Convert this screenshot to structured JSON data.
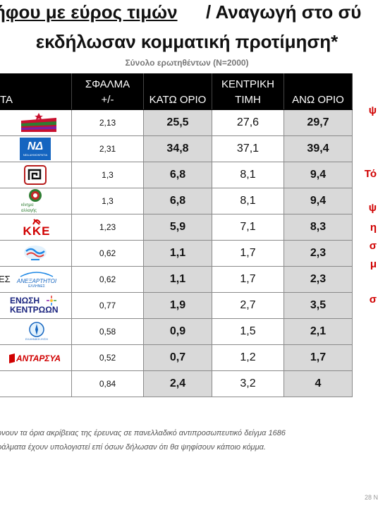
{
  "title": {
    "part1": "ήφου με εύρος τιμών",
    "part2": "/ Αναγωγή στο σύ",
    "line2": "εκδήλωσαν κομματική προτίμηση*"
  },
  "subtitle": "Σύνολο ερωτηθέντων (Ν=2000)",
  "table": {
    "headers": {
      "col0": "ΤΑ",
      "col1_line1": "ΣΦΑΛΜΑ",
      "col1_line2": "+/-",
      "col2": "ΚΑΤΩ ΟΡΙΟ",
      "col3_line1": "ΚΕΝΤΡΙΚΗ",
      "col3_line2": "ΤΙΜΗ",
      "col4": "ΑΝΩ ΟΡΙΟ"
    },
    "rows": [
      {
        "logo": "syriza-logo",
        "error": "2,13",
        "low": "25,5",
        "central": "27,6",
        "high": "29,7"
      },
      {
        "logo": "nd-logo",
        "logo_text": "ΝΔ",
        "logo_sub": "ΝΕΑ ΔΗΜΟΚΡΑΤΙΑ",
        "error": "2,31",
        "low": "34,8",
        "central": "37,1",
        "high": "39,4"
      },
      {
        "logo": "xa-logo",
        "error": "1,3",
        "low": "6,8",
        "central": "8,1",
        "high": "9,4"
      },
      {
        "logo": "kinal-logo",
        "logo_text": "κίνημα αλλαγής",
        "error": "1,3",
        "low": "6,8",
        "central": "8,1",
        "high": "9,4"
      },
      {
        "logo": "kke-logo",
        "logo_text": "ΚΚΕ",
        "error": "1,23",
        "low": "5,9",
        "central": "7,1",
        "high": "8,3"
      },
      {
        "logo": "potami-logo",
        "error": "0,62",
        "low": "1,1",
        "central": "1,7",
        "high": "2,3"
      },
      {
        "logo": "anel-logo",
        "tag": "ΕΣ",
        "logo_text": "ΑΝΕΞΑΡΤΗΤΟΙ",
        "logo_sub": "ΕΛΛΗΝΕΣ",
        "error": "0,62",
        "low": "1,1",
        "central": "1,7",
        "high": "2,3"
      },
      {
        "logo": "ek-logo",
        "logo_text": "ΕΝΩΣΗ",
        "logo_sub": "ΚΕΝΤΡΩΩΝ",
        "error": "0,77",
        "low": "1,9",
        "central": "2,7",
        "high": "3,5"
      },
      {
        "logo": "ea-logo",
        "logo_text": "ΕΛΛΗΝΙΚΗ ΛΥΣΗ",
        "error": "0,58",
        "low": "0,9",
        "central": "1,5",
        "high": "2,1"
      },
      {
        "logo": "antarsya-logo",
        "logo_text": "ΑΝΤΑΡΣΥΑ",
        "error": "0,52",
        "low": "0,7",
        "central": "1,2",
        "high": "1,7"
      },
      {
        "logo": "",
        "error": "0,84",
        "low": "2,4",
        "central": "3,2",
        "high": "4"
      }
    ]
  },
  "notes": {
    "line1": "ονουν τα όρια ακρίβειας της έρευνας σε πανελλαδικό αντιπροσωπευτικό δείγμα 1686",
    "line2": "ράλματα έχουν υπολογιστεί επί όσων δήλωσαν ότι θα ψηφίσουν κάποιο κόμμα."
  },
  "side_text": [
    "ψ",
    "Τό",
    "ψ",
    "η",
    "σ",
    "μ",
    "σ"
  ],
  "date": "28 Ν",
  "colors": {
    "accent_red": "#d00000",
    "header_bg": "#000000",
    "shade": "#d9d9d9"
  }
}
